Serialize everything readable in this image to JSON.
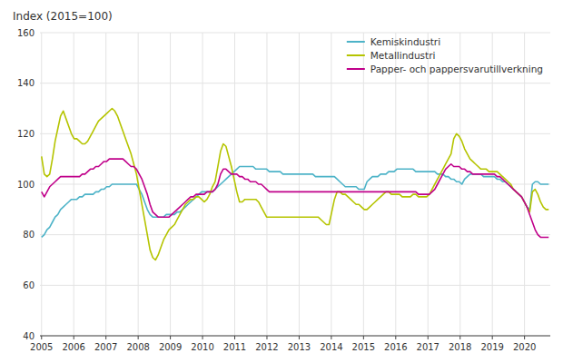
{
  "chart_data": {
    "type": "line",
    "title": "Index (2015=100)",
    "xlim": [
      2004.95,
      2020.8
    ],
    "xticks": [
      2005,
      2006,
      2007,
      2008,
      2009,
      2010,
      2011,
      2012,
      2013,
      2014,
      2015,
      2016,
      2017,
      2018,
      2019,
      2020
    ],
    "ylim": [
      40,
      160
    ],
    "yticks": [
      40,
      60,
      80,
      100,
      120,
      140,
      160
    ],
    "grid": true,
    "legend": "upper-right",
    "x": [
      2005,
      2005.0842,
      2005.1684,
      2005.2527,
      2005.3369,
      2005.4211,
      2005.5053,
      2005.5896,
      2005.6738,
      2005.758,
      2005.8422,
      2005.9265,
      2006.0107,
      2006.0949,
      2006.1791,
      2006.2634,
      2006.3476,
      2006.4318,
      2006.516,
      2006.6003,
      2006.6845,
      2006.7687,
      2006.8529,
      2006.9372,
      2007.0214,
      2007.1056,
      2007.1898,
      2007.2741,
      2007.3583,
      2007.4425,
      2007.5267,
      2007.611,
      2007.6952,
      2007.7794,
      2007.8636,
      2007.9479,
      2008.0321,
      2008.1163,
      2008.2005,
      2008.2848,
      2008.369,
      2008.4532,
      2008.5374,
      2008.6217,
      2008.7059,
      2008.7901,
      2008.8743,
      2008.9586,
      2009.0428,
      2009.127,
      2009.2112,
      2009.2955,
      2009.3797,
      2009.4639,
      2009.5481,
      2009.6324,
      2009.7166,
      2009.8008,
      2009.885,
      2009.9693,
      2010.0535,
      2010.1377,
      2010.2219,
      2010.3062,
      2010.3904,
      2010.4746,
      2010.5588,
      2010.643,
      2010.7273,
      2010.8115,
      2010.8957,
      2010.9799,
      2011.0642,
      2011.1484,
      2011.2326,
      2011.3168,
      2011.4011,
      2011.4853,
      2011.5695,
      2011.6537,
      2011.738,
      2011.8222,
      2011.9064,
      2011.9906,
      2012.0749,
      2012.1591,
      2012.2433,
      2012.3275,
      2012.4118,
      2012.496,
      2012.5802,
      2012.6644,
      2012.7487,
      2012.8329,
      2012.9171,
      2013.0013,
      2013.0856,
      2013.1698,
      2013.254,
      2013.3382,
      2013.4225,
      2013.5067,
      2013.5909,
      2013.6751,
      2013.7594,
      2013.8436,
      2013.9278,
      2014.012,
      2014.0963,
      2014.1805,
      2014.2647,
      2014.3489,
      2014.4332,
      2014.5174,
      2014.6016,
      2014.6858,
      2014.7701,
      2014.8543,
      2014.9385,
      2015.0227,
      2015.107,
      2015.1912,
      2015.2754,
      2015.3596,
      2015.4439,
      2015.5281,
      2015.6123,
      2015.6965,
      2015.7807,
      2015.865,
      2015.9492,
      2016.0334,
      2016.1176,
      2016.2019,
      2016.2861,
      2016.3703,
      2016.4545,
      2016.5388,
      2016.623,
      2016.7072,
      2016.7914,
      2016.8757,
      2016.9599,
      2017.0441,
      2017.1283,
      2017.2126,
      2017.2968,
      2017.381,
      2017.4652,
      2017.5495,
      2017.6337,
      2017.7179,
      2017.8021,
      2017.8864,
      2017.9706,
      2018.0548,
      2018.139,
      2018.2233,
      2018.3075,
      2018.3917,
      2018.4759,
      2018.5602,
      2018.6444,
      2018.7286,
      2018.8128,
      2018.8971,
      2018.9813,
      2019.0655,
      2019.1497,
      2019.234,
      2019.3182,
      2019.4024,
      2019.4866,
      2019.5709,
      2019.6551,
      2019.7393,
      2019.8235,
      2019.9078,
      2019.992,
      2020.0762,
      2020.1604,
      2020.2447,
      2020.3289,
      2020.4131,
      2020.4973,
      2020.5816,
      2020.6658,
      2020.75
    ],
    "series": [
      {
        "name": "Kemiskindustri",
        "color": "#4db3c8",
        "values": [
          79,
          80,
          82,
          83,
          85,
          87,
          88,
          90,
          91,
          92,
          93,
          94,
          94,
          94,
          95,
          95,
          96,
          96,
          96,
          96,
          97,
          97,
          98,
          98,
          99,
          99,
          100,
          100,
          100,
          100,
          100,
          100,
          100,
          100,
          100,
          100,
          98,
          96,
          93,
          90,
          88,
          87,
          87,
          87,
          87,
          87,
          88,
          88,
          88,
          88,
          89,
          89,
          90,
          91,
          92,
          93,
          94,
          95,
          96,
          97,
          97,
          97,
          97,
          97,
          98,
          99,
          100,
          101,
          102,
          103,
          104,
          105,
          106,
          107,
          107,
          107,
          107,
          107,
          107,
          106,
          106,
          106,
          106,
          106,
          105,
          105,
          105,
          105,
          105,
          104,
          104,
          104,
          104,
          104,
          104,
          104,
          104,
          104,
          104,
          104,
          104,
          103,
          103,
          103,
          103,
          103,
          103,
          103,
          103,
          102,
          101,
          100,
          99,
          99,
          99,
          99,
          99,
          98,
          98,
          98,
          101,
          102,
          103,
          103,
          103,
          104,
          104,
          104,
          105,
          105,
          105,
          106,
          106,
          106,
          106,
          106,
          106,
          106,
          105,
          105,
          105,
          105,
          105,
          105,
          105,
          105,
          104,
          104,
          104,
          103,
          103,
          102,
          102,
          101,
          101,
          100,
          102,
          103,
          104,
          104,
          104,
          104,
          104,
          103,
          103,
          103,
          103,
          103,
          102,
          102,
          101,
          101,
          100,
          99,
          98,
          97,
          96,
          95,
          93,
          91,
          90,
          100,
          101,
          101,
          100,
          100,
          100,
          100
        ]
      },
      {
        "name": "Metallindustri",
        "color": "#b5c400",
        "values": [
          111,
          104,
          103,
          104,
          110,
          117,
          122,
          127,
          129,
          126,
          123,
          120,
          118,
          118,
          117,
          116,
          116,
          117,
          119,
          121,
          123,
          125,
          126,
          127,
          128,
          129,
          130,
          129,
          127,
          124,
          121,
          118,
          115,
          112,
          108,
          104,
          98,
          92,
          86,
          80,
          74,
          71,
          70,
          72,
          75,
          78,
          80,
          82,
          83,
          84,
          86,
          88,
          90,
          92,
          93,
          94,
          94,
          95,
          95,
          94,
          93,
          94,
          96,
          99,
          101,
          107,
          113,
          116,
          115,
          111,
          107,
          102,
          97,
          93,
          93,
          94,
          94,
          94,
          94,
          94,
          93,
          91,
          89,
          87,
          87,
          87,
          87,
          87,
          87,
          87,
          87,
          87,
          87,
          87,
          87,
          87,
          87,
          87,
          87,
          87,
          87,
          87,
          87,
          86,
          85,
          84,
          84,
          89,
          94,
          97,
          97,
          96,
          96,
          95,
          94,
          93,
          92,
          92,
          91,
          90,
          90,
          91,
          92,
          93,
          94,
          95,
          96,
          97,
          97,
          96,
          96,
          96,
          96,
          95,
          95,
          95,
          95,
          96,
          96,
          95,
          95,
          95,
          95,
          96,
          98,
          100,
          102,
          104,
          106,
          108,
          110,
          112,
          118,
          120,
          119,
          117,
          114,
          112,
          110,
          109,
          108,
          107,
          106,
          106,
          106,
          105,
          105,
          105,
          105,
          104,
          103,
          102,
          101,
          100,
          98,
          97,
          96,
          95,
          93,
          91,
          89,
          97,
          98,
          96,
          93,
          91,
          90,
          90
        ]
      },
      {
        "name": "Papper- och pappersvarutillverkning",
        "color": "#c0008a",
        "values": [
          97,
          95,
          97,
          99,
          100,
          101,
          102,
          103,
          103,
          103,
          103,
          103,
          103,
          103,
          103,
          104,
          104,
          105,
          106,
          106,
          107,
          107,
          108,
          109,
          109,
          110,
          110,
          110,
          110,
          110,
          110,
          109,
          108,
          107,
          107,
          106,
          104,
          102,
          99,
          96,
          92,
          89,
          88,
          87,
          87,
          87,
          87,
          87,
          88,
          89,
          90,
          91,
          92,
          93,
          94,
          95,
          95,
          96,
          96,
          96,
          96,
          97,
          97,
          97,
          98,
          100,
          104,
          106,
          106,
          105,
          104,
          104,
          104,
          103,
          103,
          102,
          102,
          101,
          101,
          101,
          100,
          100,
          99,
          98,
          97,
          97,
          97,
          97,
          97,
          97,
          97,
          97,
          97,
          97,
          97,
          97,
          97,
          97,
          97,
          97,
          97,
          97,
          97,
          97,
          97,
          97,
          97,
          97,
          97,
          97,
          97,
          97,
          97,
          97,
          97,
          97,
          97,
          97,
          97,
          97,
          97,
          97,
          97,
          97,
          97,
          97,
          97,
          97,
          97,
          97,
          97,
          97,
          97,
          97,
          97,
          97,
          97,
          97,
          97,
          96,
          96,
          96,
          96,
          96,
          97,
          98,
          100,
          102,
          104,
          106,
          107,
          108,
          107,
          107,
          107,
          106,
          106,
          105,
          105,
          104,
          104,
          104,
          104,
          104,
          104,
          104,
          104,
          104,
          103,
          103,
          102,
          101,
          100,
          99,
          98,
          97,
          96,
          95,
          93,
          91,
          88,
          85,
          82,
          80,
          79,
          79,
          79,
          79
        ]
      }
    ]
  }
}
